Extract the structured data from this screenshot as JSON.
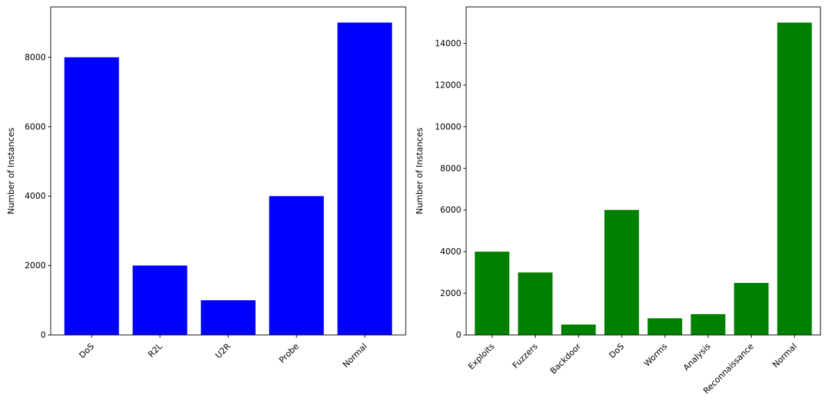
{
  "chart_data": [
    {
      "type": "bar",
      "categories": [
        "DoS",
        "R2L",
        "U2R",
        "Probe",
        "Normal"
      ],
      "values": [
        8000,
        2000,
        1000,
        4000,
        9000
      ],
      "color": "#0000ff",
      "title": "",
      "xlabel": "",
      "ylabel": "Number of Instances",
      "ylim": [
        0,
        9450
      ],
      "yticks": [
        0,
        2000,
        4000,
        6000,
        8000
      ],
      "grid": false,
      "x_tick_rotation": 45
    },
    {
      "type": "bar",
      "categories": [
        "Exploits",
        "Fuzzers",
        "Backdoor",
        "DoS",
        "Worms",
        "Analysis",
        "Reconnaissance",
        "Normal"
      ],
      "values": [
        4000,
        3000,
        500,
        6000,
        800,
        1000,
        2500,
        15000
      ],
      "color": "#008000",
      "title": "",
      "xlabel": "",
      "ylabel": "Number of Instances",
      "ylim": [
        0,
        15750
      ],
      "yticks": [
        0,
        2000,
        4000,
        6000,
        8000,
        10000,
        12000,
        14000
      ],
      "grid": false,
      "x_tick_rotation": 45
    }
  ]
}
